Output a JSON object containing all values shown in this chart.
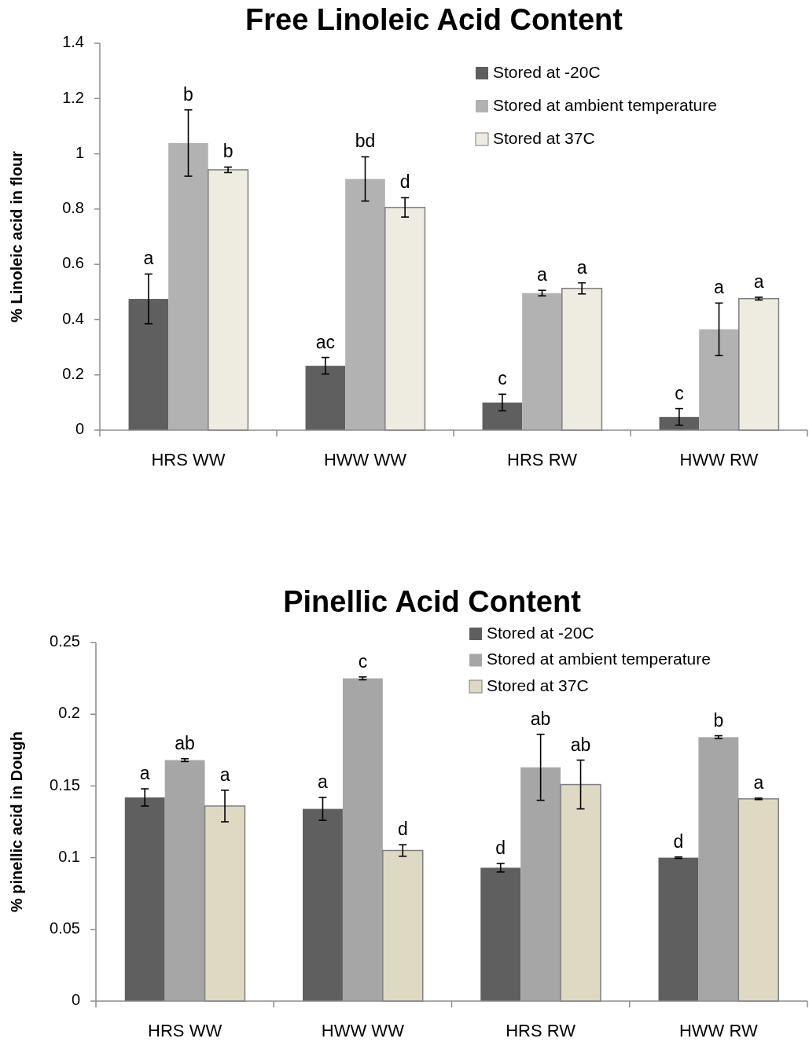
{
  "chart_data": [
    {
      "type": "bar",
      "title": "Free Linoleic Acid Content",
      "ylabel": "% Linoleic acid in flour",
      "categories": [
        "HRS WW",
        "HWW WW",
        "HRS RW",
        "HWW RW"
      ],
      "ylim": [
        0,
        1.4
      ],
      "yticks": [
        0,
        0.2,
        0.4,
        0.6,
        0.8,
        1,
        1.2,
        1.4
      ],
      "legend": "top right",
      "series": [
        {
          "name": "Stored at -20C",
          "color": "#5f5f5f",
          "values": [
            0.475,
            0.233,
            0.1,
            0.048
          ],
          "errors": [
            0.09,
            0.03,
            0.03,
            0.03
          ]
        },
        {
          "name": "Stored at ambient temperature",
          "color": "#b2b2b2",
          "values": [
            1.039,
            0.909,
            0.496,
            0.365
          ],
          "errors": [
            0.12,
            0.08,
            0.01,
            0.095
          ]
        },
        {
          "name": "Stored at 37C",
          "color": "#eeece1",
          "values": [
            0.942,
            0.806,
            0.513,
            0.476
          ],
          "errors": [
            0.01,
            0.035,
            0.02,
            0.005
          ]
        }
      ],
      "annotations": [
        "a",
        "b",
        "b",
        "ac",
        "bd",
        "d",
        "c",
        "a",
        "a",
        "c",
        "a",
        "a"
      ]
    },
    {
      "type": "bar",
      "title": "Pinellic Acid Content",
      "ylabel": "% pinellic acid in Dough",
      "categories": [
        "HRS WW",
        "HWW WW",
        "HRS RW",
        "HWW RW"
      ],
      "ylim": [
        0,
        0.25
      ],
      "yticks": [
        0,
        0.05,
        0.1,
        0.15,
        0.2,
        0.25
      ],
      "legend": "top right",
      "series": [
        {
          "name": "Stored at -20C",
          "color": "#5f5f5f",
          "values": [
            0.142,
            0.134,
            0.093,
            0.1
          ],
          "errors": [
            0.006,
            0.008,
            0.003,
            0.0005
          ]
        },
        {
          "name": "Stored at ambient temperature",
          "color": "#a6a6a6",
          "values": [
            0.168,
            0.225,
            0.163,
            0.184
          ],
          "errors": [
            0.001,
            0.001,
            0.023,
            0.001
          ]
        },
        {
          "name": "Stored at 37C",
          "color": "#ddd9c3",
          "values": [
            0.136,
            0.105,
            0.151,
            0.141
          ],
          "errors": [
            0.011,
            0.004,
            0.017,
            0.0005
          ]
        }
      ],
      "annotations": [
        "a",
        "ab",
        "a",
        "a",
        "c",
        "d",
        "d",
        "ab",
        "ab",
        "d",
        "b",
        "a"
      ]
    }
  ]
}
